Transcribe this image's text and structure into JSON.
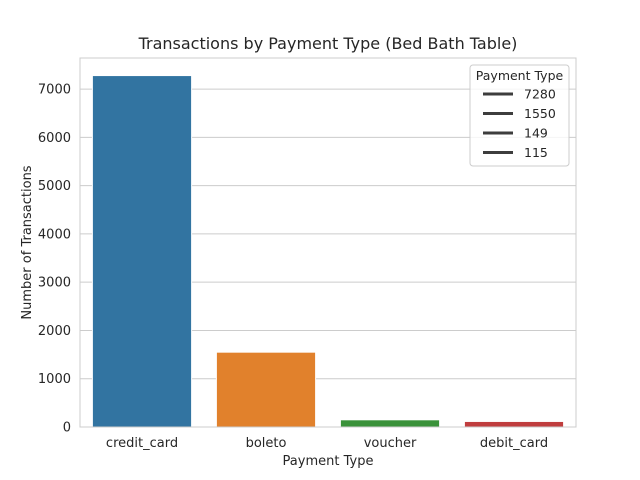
{
  "chart_data": {
    "type": "bar",
    "title": "Transactions by Payment Type (Bed Bath Table)",
    "xlabel": "Payment Type",
    "ylabel": "Number of Transactions",
    "categories": [
      "credit_card",
      "boleto",
      "voucher",
      "debit_card"
    ],
    "values": [
      7280,
      1550,
      149,
      115
    ],
    "colors": [
      "#3274a1",
      "#e1812c",
      "#3a923a",
      "#c03d3e"
    ],
    "ylim": [
      0,
      7644
    ],
    "yticks": [
      0,
      1000,
      2000,
      3000,
      4000,
      5000,
      6000,
      7000
    ],
    "grid": true,
    "legend": {
      "title": "Payment Type",
      "placement": "top-right",
      "entries": [
        "7280",
        "1550",
        "149",
        "115"
      ]
    }
  }
}
